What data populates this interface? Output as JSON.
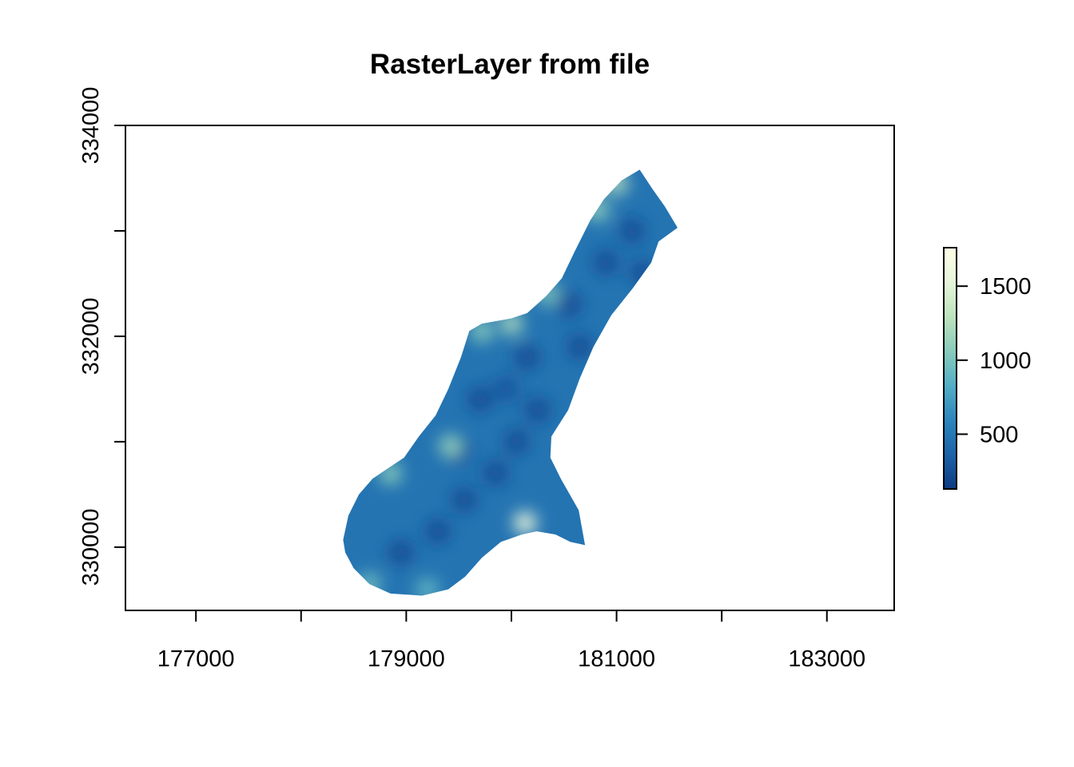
{
  "chart_data": {
    "type": "heatmap",
    "title": "RasterLayer from file",
    "xlabel": "",
    "ylabel": "",
    "xlim": [
      176330,
      183640
    ],
    "ylim": [
      329400,
      334000
    ],
    "x_ticks": [
      {
        "value": 177000,
        "label": "177000"
      },
      {
        "value": 178000,
        "label": ""
      },
      {
        "value": 179000,
        "label": "179000"
      },
      {
        "value": 180000,
        "label": ""
      },
      {
        "value": 181000,
        "label": "181000"
      },
      {
        "value": 182000,
        "label": ""
      },
      {
        "value": 183000,
        "label": "183000"
      }
    ],
    "y_ticks": [
      {
        "value": 330000,
        "label": "330000"
      },
      {
        "value": 331000,
        "label": ""
      },
      {
        "value": 332000,
        "label": "332000"
      },
      {
        "value": 333000,
        "label": ""
      },
      {
        "value": 334000,
        "label": "334000"
      }
    ],
    "raster_outline": [
      [
        178400,
        330070
      ],
      [
        178450,
        330300
      ],
      [
        178550,
        330500
      ],
      [
        178680,
        330650
      ],
      [
        178830,
        330750
      ],
      [
        178980,
        330850
      ],
      [
        179120,
        331050
      ],
      [
        179280,
        331250
      ],
      [
        179400,
        331500
      ],
      [
        179520,
        331800
      ],
      [
        179600,
        332050
      ],
      [
        179720,
        332120
      ],
      [
        180000,
        332170
      ],
      [
        180150,
        332220
      ],
      [
        180330,
        332380
      ],
      [
        180480,
        332550
      ],
      [
        180600,
        332800
      ],
      [
        180750,
        333100
      ],
      [
        180880,
        333300
      ],
      [
        181050,
        333480
      ],
      [
        181220,
        333580
      ],
      [
        181340,
        333400
      ],
      [
        181460,
        333230
      ],
      [
        181580,
        333030
      ],
      [
        181400,
        332900
      ],
      [
        181330,
        332700
      ],
      [
        181150,
        332450
      ],
      [
        180950,
        332200
      ],
      [
        180780,
        331900
      ],
      [
        180650,
        331600
      ],
      [
        180540,
        331300
      ],
      [
        180380,
        331050
      ],
      [
        180370,
        330850
      ],
      [
        180470,
        330650
      ],
      [
        180640,
        330350
      ],
      [
        180700,
        330020
      ],
      [
        180560,
        330050
      ],
      [
        180420,
        330120
      ],
      [
        180240,
        330150
      ],
      [
        180100,
        330120
      ],
      [
        179900,
        330050
      ],
      [
        179720,
        329900
      ],
      [
        179560,
        329720
      ],
      [
        179400,
        329600
      ],
      [
        179150,
        329540
      ],
      [
        178850,
        329560
      ],
      [
        178650,
        329650
      ],
      [
        178500,
        329800
      ],
      [
        178420,
        329950
      ]
    ],
    "hotspots": [
      {
        "x": 180130,
        "y": 330230,
        "value": 1550
      },
      {
        "x": 179420,
        "y": 330960,
        "value": 1100
      },
      {
        "x": 178850,
        "y": 330700,
        "value": 1050
      },
      {
        "x": 180000,
        "y": 332120,
        "value": 1200
      },
      {
        "x": 179720,
        "y": 332050,
        "value": 1050
      },
      {
        "x": 180350,
        "y": 332400,
        "value": 1000
      },
      {
        "x": 180820,
        "y": 333200,
        "value": 1100
      },
      {
        "x": 181000,
        "y": 333450,
        "value": 1250
      },
      {
        "x": 178650,
        "y": 329650,
        "value": 950
      },
      {
        "x": 179200,
        "y": 329600,
        "value": 900
      }
    ],
    "lowspots": [
      {
        "x": 178950,
        "y": 329950,
        "value": 250
      },
      {
        "x": 179300,
        "y": 330150,
        "value": 250
      },
      {
        "x": 179550,
        "y": 330450,
        "value": 250
      },
      {
        "x": 179850,
        "y": 330700,
        "value": 250
      },
      {
        "x": 180050,
        "y": 331000,
        "value": 250
      },
      {
        "x": 180250,
        "y": 331300,
        "value": 250
      },
      {
        "x": 179700,
        "y": 331400,
        "value": 250
      },
      {
        "x": 180150,
        "y": 331800,
        "value": 250
      },
      {
        "x": 180550,
        "y": 332300,
        "value": 250
      },
      {
        "x": 180900,
        "y": 332700,
        "value": 250
      },
      {
        "x": 181150,
        "y": 333000,
        "value": 250
      },
      {
        "x": 181250,
        "y": 332600,
        "value": 250
      },
      {
        "x": 180650,
        "y": 331900,
        "value": 250
      },
      {
        "x": 179950,
        "y": 331500,
        "value": 300
      },
      {
        "x": 179500,
        "y": 330900,
        "value": 300
      }
    ],
    "base_value": 480,
    "legend": {
      "placement": "right",
      "min": 130,
      "max": 1760,
      "ticks": [
        {
          "value": 500,
          "label": "500"
        },
        {
          "value": 1000,
          "label": "1000"
        },
        {
          "value": 1500,
          "label": "1500"
        }
      ],
      "colors": [
        "#0c3a82",
        "#1c62a8",
        "#2c86bc",
        "#53aec5",
        "#89cbbb",
        "#bde3bd",
        "#e6f5da",
        "#ffffe5"
      ]
    }
  }
}
